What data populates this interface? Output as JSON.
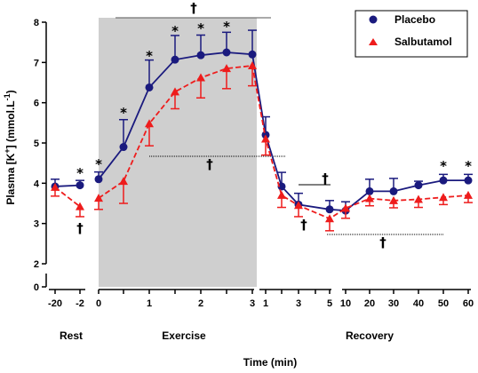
{
  "chart_data": {
    "type": "line",
    "title": "",
    "xlabel": "Time (min)",
    "ylabel_main": "Plasma [K",
    "ylabel_sup": "+",
    "ylabel_rest": "] (mmol.L",
    "ylabel_sup2": "-1",
    "ylabel_end": ")",
    "ylim": [
      0,
      8
    ],
    "y_break": "between 0 and 2",
    "y_ticks": [
      "0",
      "2",
      "3",
      "4",
      "5",
      "6",
      "7",
      "8"
    ],
    "x_ticks": [
      "-20",
      "-2",
      "0",
      "0.5",
      "1",
      "1.5",
      "2",
      "2.5",
      "3",
      "1",
      "2",
      "3",
      "4",
      "5",
      "10",
      "20",
      "30",
      "40",
      "50",
      "60"
    ],
    "x_tick_labels_shown": [
      "-20",
      "-2",
      "0",
      "1",
      "2",
      "3",
      "1",
      "3",
      "5",
      "10",
      "20",
      "30",
      "40",
      "50",
      "60"
    ],
    "phases": [
      {
        "label": "Rest",
        "x": [
          "-20",
          "-2"
        ]
      },
      {
        "label": "Exercise",
        "x": [
          "0",
          "0.5",
          "1",
          "1.5",
          "2",
          "2.5",
          "3"
        ],
        "shaded": true
      },
      {
        "label": "Recovery",
        "x": [
          "1",
          "2",
          "3",
          "5",
          "10",
          "20",
          "30",
          "40",
          "50",
          "60"
        ]
      }
    ],
    "series": [
      {
        "name": "Placebo",
        "color": "#1a1a7e",
        "line_style": "solid",
        "marker": "circle",
        "values": [
          3.92,
          3.95,
          4.1,
          4.9,
          6.38,
          7.07,
          7.18,
          7.25,
          7.2,
          5.2,
          3.92,
          3.47,
          3.35,
          3.32,
          3.8,
          3.8,
          3.95,
          4.07,
          4.07
        ],
        "errors": [
          0.18,
          0.12,
          0.18,
          0.68,
          0.68,
          0.6,
          0.5,
          0.5,
          0.6,
          0.45,
          0.35,
          0.28,
          0.22,
          0.22,
          0.3,
          0.32,
          0.1,
          0.15,
          0.15
        ]
      },
      {
        "name": "Salbutamol",
        "color": "#ee1c1c",
        "line_style": "dashed",
        "marker": "triangle",
        "values": [
          3.9,
          3.42,
          3.63,
          4.05,
          5.48,
          6.27,
          6.62,
          6.85,
          6.92,
          5.1,
          3.7,
          3.45,
          3.12,
          3.38,
          3.62,
          3.57,
          3.6,
          3.65,
          3.7
        ],
        "errors": [
          0.22,
          0.25,
          0.28,
          0.55,
          0.55,
          0.42,
          0.5,
          0.5,
          0.5,
          0.4,
          0.3,
          0.28,
          0.3,
          0.25,
          0.18,
          0.18,
          0.2,
          0.18,
          0.18
        ]
      }
    ],
    "significance_stars_at": [
      "-2",
      "0",
      "0.5",
      "1",
      "1.5",
      "2",
      "2.5",
      "50",
      "60"
    ],
    "star_symbol": "*",
    "dagger_symbol": "†",
    "legend": {
      "placement": "top-right",
      "entries": [
        "Placebo",
        "Salbutamol"
      ]
    },
    "grid": false
  }
}
